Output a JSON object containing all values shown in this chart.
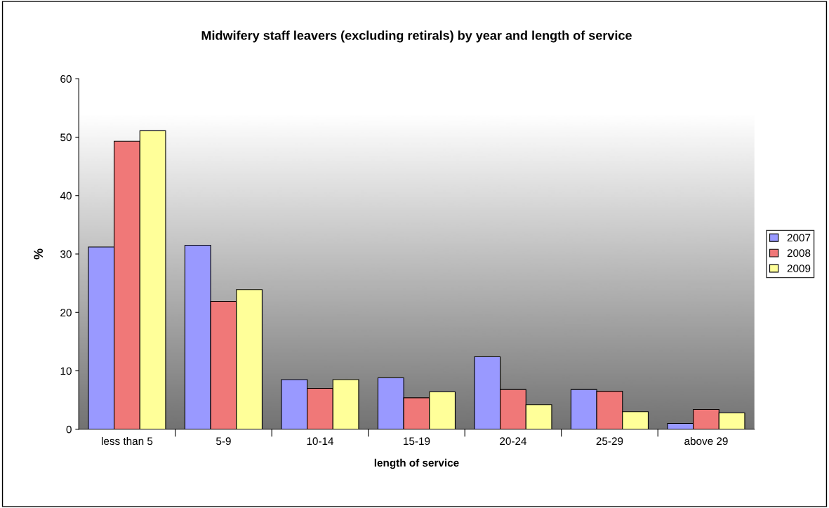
{
  "chart_data": {
    "type": "bar",
    "title": "Midwifery staff leavers (excluding retirals) by year and length of service",
    "xlabel": "length of service",
    "ylabel": "%",
    "categories": [
      "less than 5",
      "5-9",
      "10-14",
      "15-19",
      "20-24",
      "25-29",
      "above 29"
    ],
    "series": [
      {
        "name": "2007",
        "color": "#9999ff",
        "values": [
          31.2,
          31.5,
          8.5,
          8.8,
          12.4,
          6.8,
          1.0
        ]
      },
      {
        "name": "2008",
        "color": "#f07878",
        "values": [
          49.3,
          21.9,
          7.0,
          5.4,
          6.8,
          6.5,
          3.4
        ]
      },
      {
        "name": "2009",
        "color": "#ffff99",
        "values": [
          51.1,
          23.9,
          8.5,
          6.4,
          4.2,
          3.0,
          2.8
        ]
      }
    ],
    "ylim": [
      0,
      60
    ],
    "yticks": [
      0,
      10,
      20,
      30,
      40,
      50,
      60
    ],
    "grid": false,
    "legend": "right"
  }
}
